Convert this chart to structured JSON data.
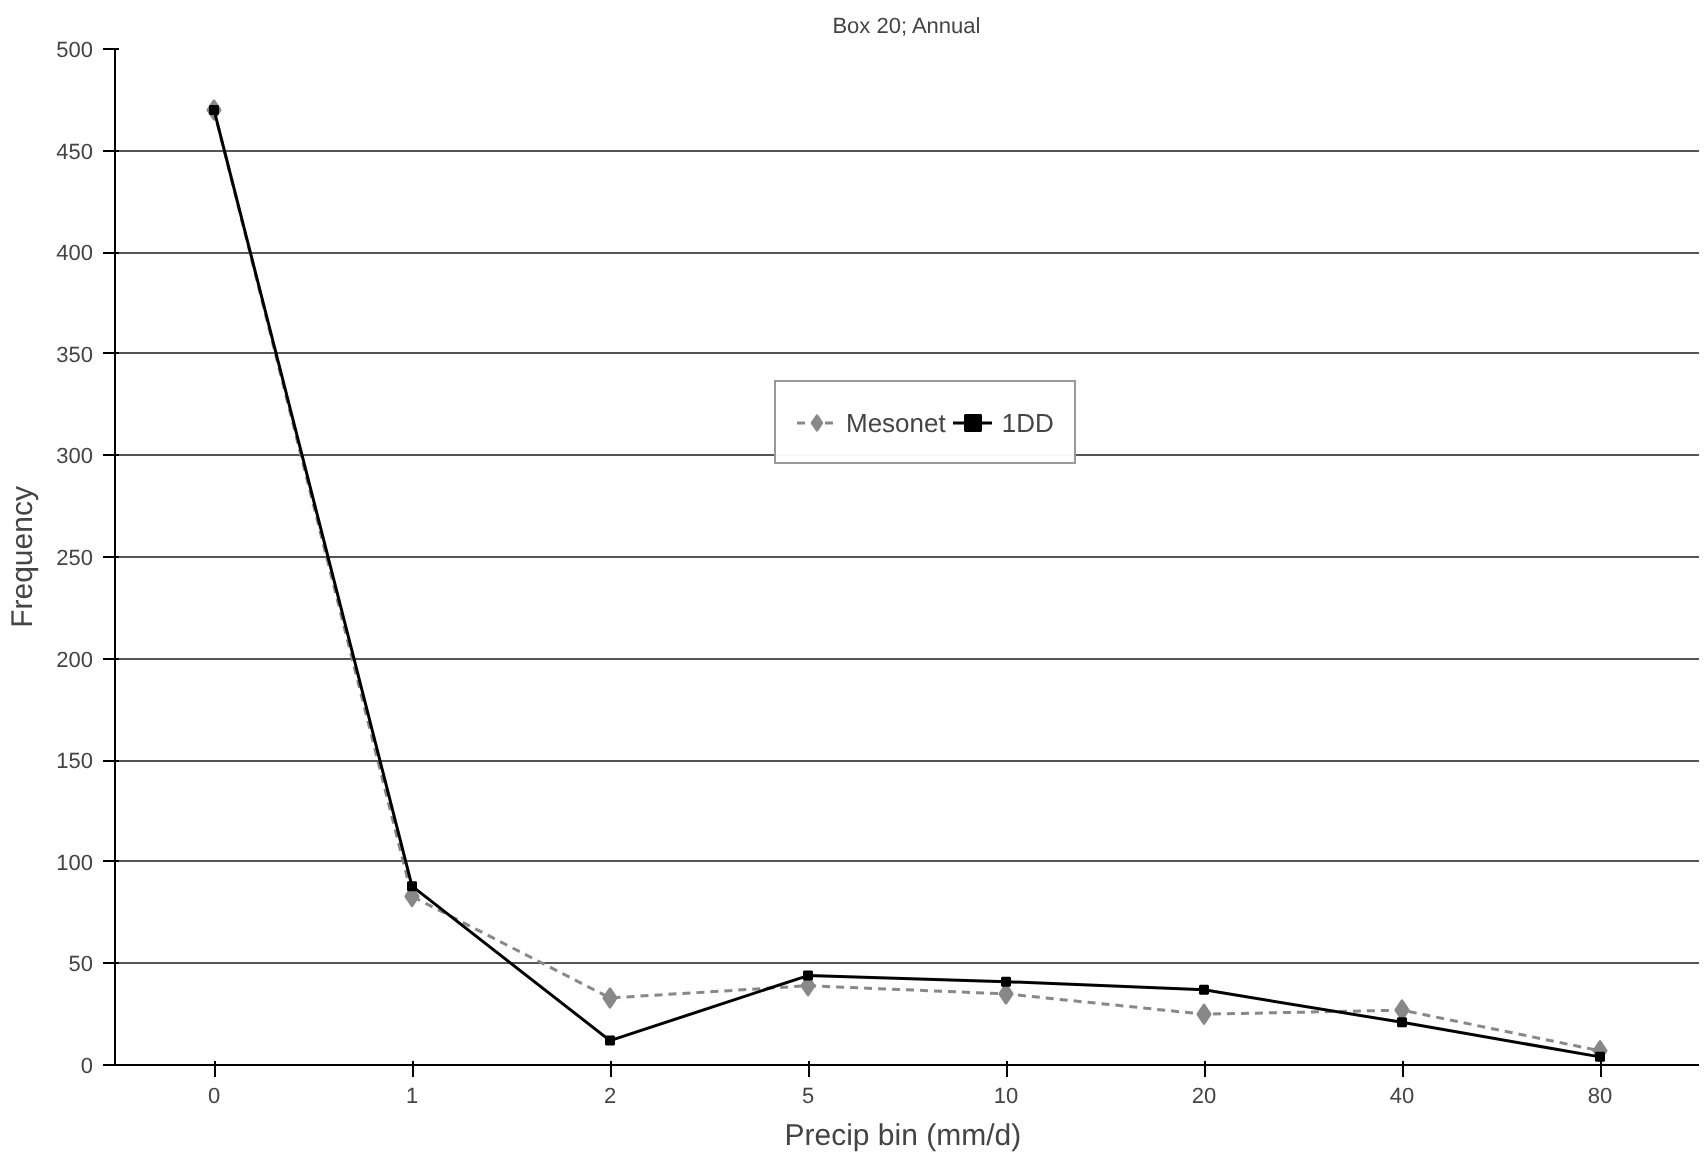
{
  "chart_data": {
    "type": "line",
    "title": "Box 20; Annual",
    "xlabel": "Precip bin  (mm/d)",
    "ylabel": "Frequency",
    "categories": [
      "0",
      "1",
      "2",
      "5",
      "10",
      "20",
      "40",
      "80"
    ],
    "series": [
      {
        "name": "Mesonet",
        "color": "#888888",
        "marker": "diamond",
        "line_style": "dashed",
        "values": [
          470,
          83,
          33,
          39,
          35,
          25,
          27,
          7
        ]
      },
      {
        "name": "1DD",
        "color": "#000000",
        "marker": "square",
        "line_style": "solid",
        "values": [
          470,
          88,
          12,
          44,
          41,
          37,
          21,
          4
        ]
      }
    ],
    "ylim": [
      0,
      500
    ],
    "yticks": [
      0,
      50,
      100,
      150,
      200,
      250,
      300,
      350,
      400,
      450,
      500
    ],
    "grid": "y",
    "legend": "top"
  }
}
